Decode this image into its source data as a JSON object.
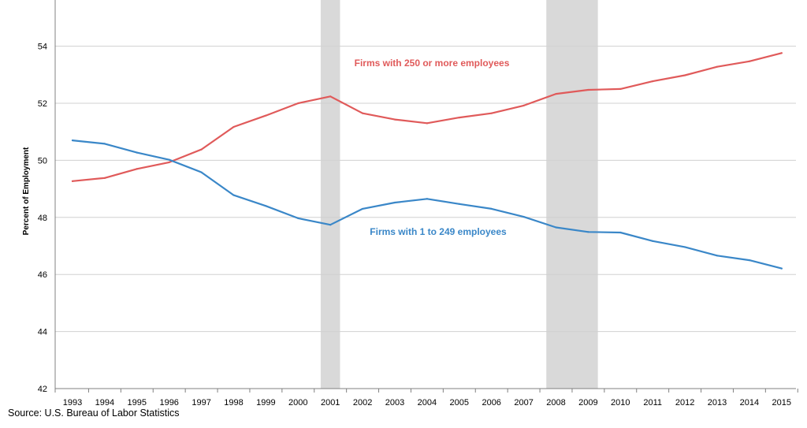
{
  "chart_data": {
    "type": "line",
    "title": "",
    "xlabel": "",
    "ylabel": "Percent of Employment",
    "ylim": [
      42,
      55
    ],
    "yticks": [
      42,
      44,
      46,
      48,
      50,
      52,
      54
    ],
    "grid": true,
    "x": [
      "1993",
      "1994",
      "1995",
      "1996",
      "1997",
      "1998",
      "1999",
      "2000",
      "2001",
      "2002",
      "2003",
      "2004",
      "2005",
      "2006",
      "2007",
      "2008",
      "2009",
      "2010",
      "2011",
      "2012",
      "2013",
      "2014",
      "2015"
    ],
    "recessions": [
      [
        "2001",
        "2001"
      ],
      [
        "2008",
        "2009"
      ]
    ],
    "series": [
      {
        "name": "Firms with 250 or more employees",
        "color": "#e05a5a",
        "values": [
          49.27,
          49.38,
          49.7,
          49.93,
          50.38,
          51.17,
          51.57,
          52.0,
          52.24,
          51.65,
          51.43,
          51.3,
          51.5,
          51.65,
          51.92,
          52.33,
          52.47,
          52.5,
          52.77,
          52.98,
          53.28,
          53.47,
          53.76
        ]
      },
      {
        "name": "Firms with 1 to 249 employees",
        "color": "#3a87c8",
        "values": [
          50.7,
          50.58,
          50.27,
          50.02,
          49.58,
          48.78,
          48.4,
          47.97,
          47.74,
          48.3,
          48.52,
          48.65,
          48.47,
          48.3,
          48.02,
          47.65,
          47.49,
          47.47,
          47.17,
          46.96,
          46.66,
          46.5,
          46.21
        ]
      }
    ]
  },
  "source": "Source: U.S. Bureau of Labor Statistics"
}
